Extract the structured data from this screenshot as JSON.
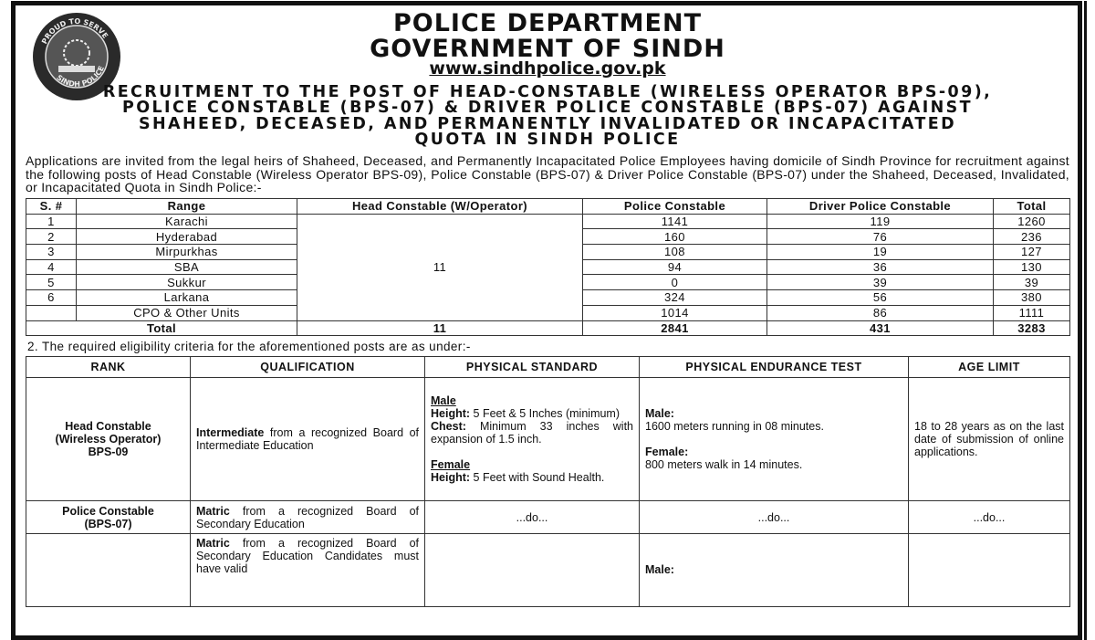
{
  "header": {
    "logo_text_top": "PROUD TO SERVE",
    "logo_text_bottom": "SINDH POLICE",
    "line1": "POLICE DEPARTMENT",
    "line2": "GOVERNMENT OF SINDH",
    "url": "www.sindhpolice.gov.pk"
  },
  "title": [
    "RECRUITMENT TO THE POST OF HEAD-CONSTABLE (WIRELESS OPERATOR BPS-09),",
    "POLICE CONSTABLE (BPS-07) & DRIVER POLICE CONSTABLE (BPS-07) AGAINST",
    "SHAHEED, DECEASED, AND PERMANENTLY INVALIDATED OR INCAPACITATED",
    "QUOTA IN SINDH POLICE"
  ],
  "intro": "Applications are invited from the legal heirs of Shaheed, Deceased, and Permanently Incapacitated Police Employees having domicile of Sindh Province for recruitment against the following posts of Head Constable (Wireless Operator BPS-09), Police Constable (BPS-07) & Driver Police Constable (BPS-07) under the Shaheed, Deceased, Invalidated, or Incapacitated Quota in Sindh Police:-",
  "posts": {
    "headers": [
      "S. #",
      "Range",
      "Head Constable (W/Operator)",
      "Police Constable",
      "Driver Police Constable",
      "Total"
    ],
    "head_constable_all": "11",
    "rows": [
      [
        "1",
        "Karachi",
        "1141",
        "119",
        "1260"
      ],
      [
        "2",
        "Hyderabad",
        "160",
        "76",
        "236"
      ],
      [
        "3",
        "Mirpurkhas",
        "108",
        "19",
        "127"
      ],
      [
        "4",
        "SBA",
        "94",
        "36",
        "130"
      ],
      [
        "5",
        "Sukkur",
        "0",
        "39",
        "39"
      ],
      [
        "6",
        "Larkana",
        "324",
        "56",
        "380"
      ],
      [
        "",
        "CPO & Other Units",
        "1014",
        "86",
        "1111"
      ]
    ],
    "total": [
      "Total",
      "11",
      "2841",
      "431",
      "3283"
    ]
  },
  "note": "2.  The required eligibility criteria for the aforementioned posts are as under:-",
  "eligibility": {
    "headers": [
      "RANK",
      "QUALIFICATION",
      "PHYSICAL STANDARD",
      "PHYSICAL ENDURANCE TEST",
      "AGE LIMIT"
    ],
    "r1": {
      "rank": [
        "Head Constable",
        "(Wireless Operator)",
        "BPS-09"
      ],
      "qual_bold": "Intermediate",
      "qual": " from a recognized Board of Intermediate Education",
      "male": "Male",
      "male_height_k": "Height:",
      "male_height": " 5 Feet & 5 Inches (minimum)",
      "chest_k": "Chest:",
      "chest": " Minimum 33 inches with expansion of 1.5 inch.",
      "female": "Female",
      "female_height_k": "Height:",
      "female_height": " 5 Feet with Sound Health.",
      "pet_male": "Male:",
      "pet_male_text": "1600 meters running in 08 minutes.",
      "pet_female": "Female:",
      "pet_female_text": "800 meters walk in 14 minutes.",
      "age": "18 to 28 years as on the last date of submission of online applications."
    },
    "r2": {
      "rank": [
        "Police Constable",
        "(BPS-07)"
      ],
      "qual_bold": "Matric",
      "qual": " from a recognized Board of Secondary Education",
      "ditto": "...do..."
    },
    "r3": {
      "qual_bold": "Matric",
      "qual": " from a recognized Board of Secondary Education Candidates must have valid",
      "pet_male": "Male:"
    }
  }
}
